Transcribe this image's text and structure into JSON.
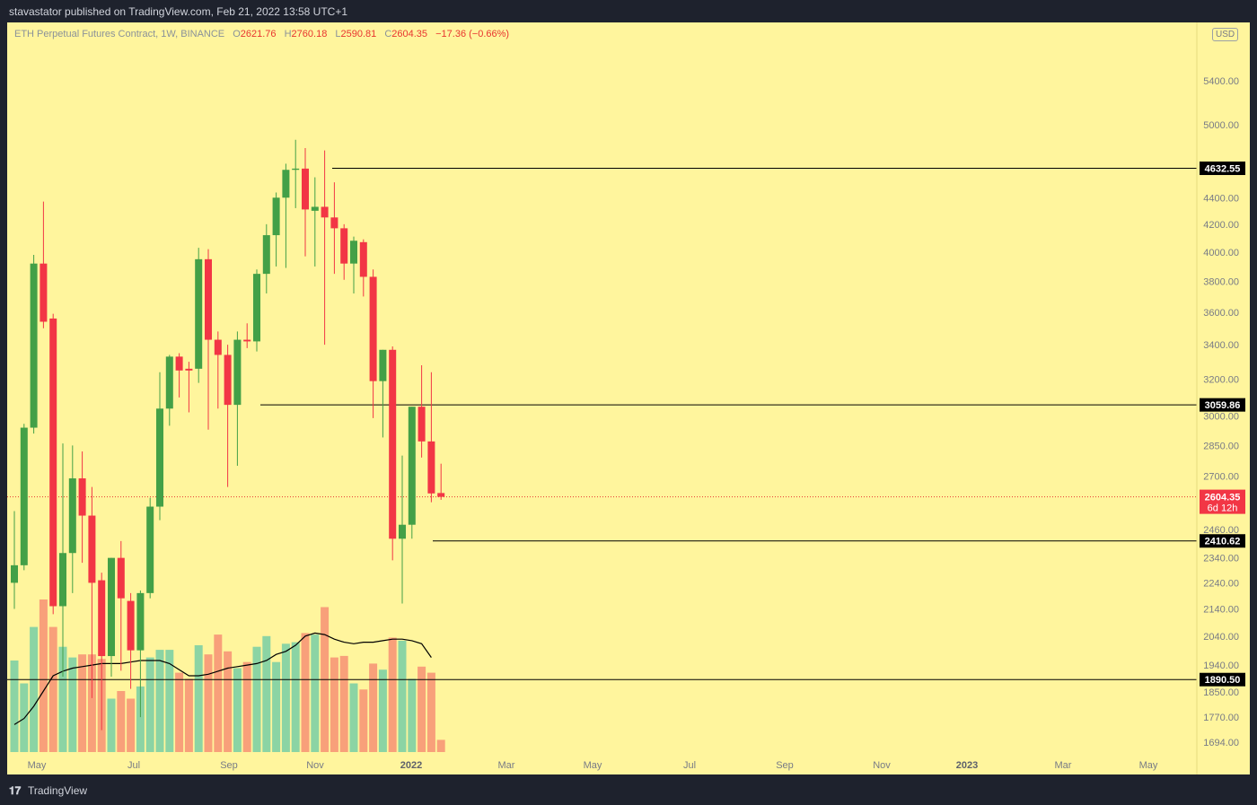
{
  "header": {
    "published": "stavastator published on TradingView.com, Feb 21, 2022 13:58 UTC+1"
  },
  "legend": {
    "symbol": "ETH Perpetual Futures Contract, 1W, BINANCE",
    "o_label": "O",
    "o": "2621.76",
    "h_label": "H",
    "h": "2760.18",
    "l_label": "L",
    "l": "2590.81",
    "c_label": "C",
    "c": "2604.35",
    "change": "−17.36 (−0.66%)"
  },
  "currency_badge": "USD",
  "footer": {
    "brand": "TradingView"
  },
  "colors": {
    "background": "#fff59d",
    "up": "#43a047",
    "down": "#f23645",
    "volume_up": "#8bd4a4",
    "volume_down": "#f8a07a",
    "ma": "#000000",
    "level_line": "#000000"
  },
  "chart_data": {
    "type": "candlestick",
    "interval": "1W",
    "y_axis": {
      "scale": "log",
      "ticks": [
        5400,
        5000,
        4400,
        4200,
        4000,
        3800,
        3600,
        3400,
        3200,
        3000,
        2850,
        2700,
        2460,
        2340,
        2240,
        2140,
        2040,
        1940,
        1850,
        1770,
        1694
      ],
      "tick_labels": [
        "5400.00",
        "5000.00",
        "4400.00",
        "4200.00",
        "4000.00",
        "3800.00",
        "3600.00",
        "3400.00",
        "3200.00",
        "3000.00",
        "2850.00",
        "2700.00",
        "2460.00",
        "2340.00",
        "2240.00",
        "2140.00",
        "2040.00",
        "1940.00",
        "1850.00",
        "1770.00",
        "1694.00"
      ]
    },
    "x_axis": {
      "labels": [
        "May",
        "Jul",
        "Sep",
        "Nov",
        "2022",
        "Mar",
        "May",
        "Jul",
        "Sep",
        "Nov",
        "2023",
        "Mar",
        "May"
      ]
    },
    "candles": [
      {
        "o": 2240,
        "h": 2540,
        "l": 2140,
        "c": 2310
      },
      {
        "o": 2310,
        "h": 2960,
        "l": 2290,
        "c": 2940
      },
      {
        "o": 2940,
        "h": 3980,
        "l": 2910,
        "c": 3920
      },
      {
        "o": 3920,
        "h": 4370,
        "l": 3500,
        "c": 3540
      },
      {
        "o": 3560,
        "h": 3590,
        "l": 2120,
        "c": 2150
      },
      {
        "o": 2150,
        "h": 2860,
        "l": 1900,
        "c": 2360
      },
      {
        "o": 2360,
        "h": 2850,
        "l": 2200,
        "c": 2690
      },
      {
        "o": 2690,
        "h": 2820,
        "l": 2320,
        "c": 2520
      },
      {
        "o": 2520,
        "h": 2650,
        "l": 1830,
        "c": 2240
      },
      {
        "o": 2250,
        "h": 2280,
        "l": 1730,
        "c": 1970
      },
      {
        "o": 1970,
        "h": 2340,
        "l": 1900,
        "c": 2340
      },
      {
        "o": 2340,
        "h": 2410,
        "l": 1920,
        "c": 2180
      },
      {
        "o": 2170,
        "h": 2200,
        "l": 1860,
        "c": 1990
      },
      {
        "o": 1990,
        "h": 2210,
        "l": 1770,
        "c": 2200
      },
      {
        "o": 2200,
        "h": 2600,
        "l": 2180,
        "c": 2560
      },
      {
        "o": 2560,
        "h": 3240,
        "l": 2500,
        "c": 3040
      },
      {
        "o": 3040,
        "h": 3340,
        "l": 2950,
        "c": 3330
      },
      {
        "o": 3330,
        "h": 3350,
        "l": 3100,
        "c": 3250
      },
      {
        "o": 3260,
        "h": 3300,
        "l": 3020,
        "c": 3250
      },
      {
        "o": 3260,
        "h": 4030,
        "l": 3180,
        "c": 3950
      },
      {
        "o": 3950,
        "h": 4020,
        "l": 2930,
        "c": 3430
      },
      {
        "o": 3430,
        "h": 3480,
        "l": 3040,
        "c": 3340
      },
      {
        "o": 3340,
        "h": 3400,
        "l": 2650,
        "c": 3060
      },
      {
        "o": 3060,
        "h": 3480,
        "l": 2750,
        "c": 3430
      },
      {
        "o": 3430,
        "h": 3530,
        "l": 3380,
        "c": 3420
      },
      {
        "o": 3420,
        "h": 3880,
        "l": 3360,
        "c": 3850
      },
      {
        "o": 3850,
        "h": 4200,
        "l": 3720,
        "c": 4120
      },
      {
        "o": 4120,
        "h": 4440,
        "l": 3900,
        "c": 4400
      },
      {
        "o": 4400,
        "h": 4670,
        "l": 3890,
        "c": 4620
      },
      {
        "o": 4620,
        "h": 4870,
        "l": 4320,
        "c": 4630
      },
      {
        "o": 4630,
        "h": 4800,
        "l": 3970,
        "c": 4310
      },
      {
        "o": 4300,
        "h": 4560,
        "l": 3900,
        "c": 4330
      },
      {
        "o": 4330,
        "h": 4780,
        "l": 3400,
        "c": 4250
      },
      {
        "o": 4250,
        "h": 4520,
        "l": 3850,
        "c": 4170
      },
      {
        "o": 4170,
        "h": 4200,
        "l": 3810,
        "c": 3920
      },
      {
        "o": 3920,
        "h": 4110,
        "l": 3720,
        "c": 4080
      },
      {
        "o": 4070,
        "h": 4090,
        "l": 3700,
        "c": 3830
      },
      {
        "o": 3830,
        "h": 3880,
        "l": 2990,
        "c": 3190
      },
      {
        "o": 3190,
        "h": 3370,
        "l": 2890,
        "c": 3370
      },
      {
        "o": 3370,
        "h": 3390,
        "l": 2330,
        "c": 2420
      },
      {
        "o": 2420,
        "h": 2800,
        "l": 2160,
        "c": 2480
      },
      {
        "o": 2480,
        "h": 3050,
        "l": 2420,
        "c": 3050
      },
      {
        "o": 3050,
        "h": 3280,
        "l": 2790,
        "c": 2870
      },
      {
        "o": 2870,
        "h": 3240,
        "l": 2580,
        "c": 2620
      },
      {
        "o": 2621.76,
        "h": 2760.18,
        "l": 2590.81,
        "c": 2604.35
      }
    ],
    "volume_ma": [
      0.18,
      0.22,
      0.3,
      0.4,
      0.5,
      0.53,
      0.55,
      0.56,
      0.57,
      0.58,
      0.58,
      0.58,
      0.59,
      0.6,
      0.6,
      0.6,
      0.58,
      0.54,
      0.5,
      0.5,
      0.51,
      0.53,
      0.55,
      0.56,
      0.57,
      0.58,
      0.6,
      0.64,
      0.66,
      0.7,
      0.76,
      0.78,
      0.77,
      0.74,
      0.72,
      0.71,
      0.72,
      0.72,
      0.73,
      0.74,
      0.74,
      0.73,
      0.71,
      0.62
    ],
    "volume": [
      0.6,
      0.45,
      0.82,
      1.0,
      0.82,
      0.69,
      0.62,
      0.64,
      0.64,
      0.61,
      0.35,
      0.4,
      0.35,
      0.43,
      0.62,
      0.67,
      0.67,
      0.52,
      0.48,
      0.7,
      0.64,
      0.77,
      0.66,
      0.55,
      0.59,
      0.69,
      0.76,
      0.59,
      0.71,
      0.72,
      0.78,
      0.77,
      0.95,
      0.62,
      0.63,
      0.45,
      0.41,
      0.58,
      0.54,
      0.75,
      0.73,
      0.48,
      0.56,
      0.52,
      0.08
    ],
    "horizontal_levels": [
      {
        "label": "4632.55",
        "value": 4632.55
      },
      {
        "label": "3059.86",
        "value": 3059.86
      },
      {
        "label": "2410.62",
        "value": 2410.62
      },
      {
        "label": "1890.50",
        "value": 1890.5
      }
    ],
    "last_price": {
      "value": 2604.35,
      "label": "2604.35",
      "countdown": "6d 12h"
    }
  }
}
